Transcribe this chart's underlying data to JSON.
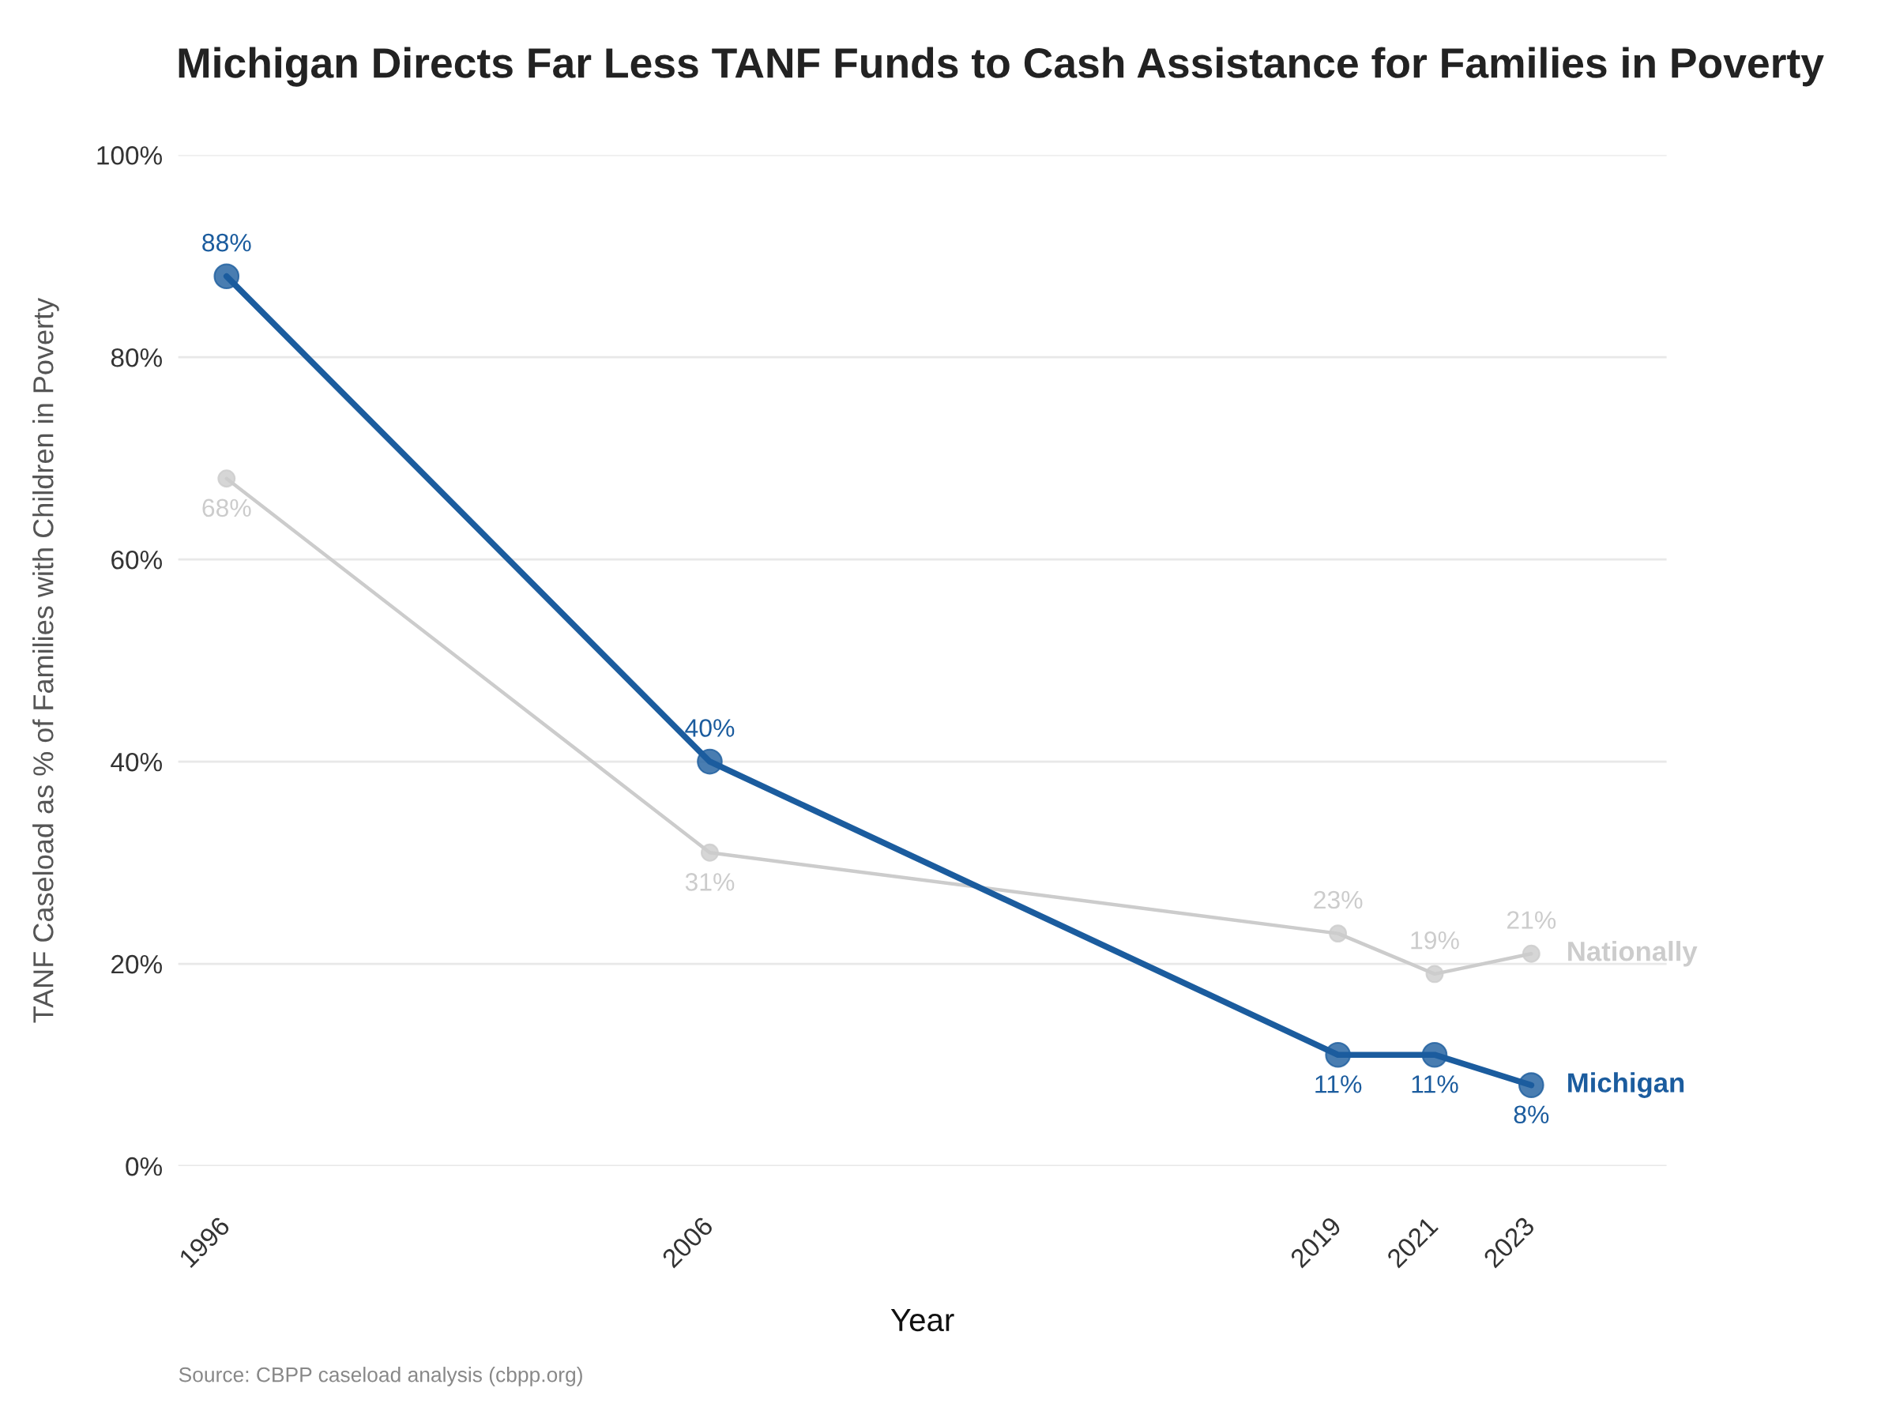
{
  "chart_data": {
    "type": "line",
    "title": "Michigan Directs Far Less TANF Funds to Cash Assistance for Families in Poverty",
    "xlabel": "Year",
    "ylabel": "TANF Caseload as % of Families with Children in Poverty",
    "x": [
      1996,
      2006,
      2019,
      2021,
      2023
    ],
    "series": [
      {
        "name": "Michigan",
        "color": "#1b5c9e",
        "values": [
          88,
          40,
          11,
          11,
          8
        ],
        "value_labels": [
          "88%",
          "40%",
          "11%",
          "11%",
          "8%"
        ]
      },
      {
        "name": "Nationally",
        "color": "#cccccc",
        "values": [
          68,
          31,
          23,
          19,
          21
        ],
        "value_labels": [
          "68%",
          "31%",
          "23%",
          "19%",
          "21%"
        ]
      }
    ],
    "xlim": [
      1995,
      2025.8
    ],
    "xticks": [
      1996,
      2006,
      2019,
      2021,
      2023
    ],
    "ylim": [
      0,
      100
    ],
    "yticks": [
      {
        "value": 0,
        "label": "0%"
      },
      {
        "value": 20,
        "label": "20%"
      },
      {
        "value": 40,
        "label": "40%"
      },
      {
        "value": 60,
        "label": "60%"
      },
      {
        "value": 80,
        "label": "80%"
      },
      {
        "value": 100,
        "label": "100%"
      }
    ],
    "grid": "y",
    "marker": "circle",
    "line_style": "solid",
    "annotations": [
      "Source: CBPP caseload analysis (cbpp.org)"
    ]
  }
}
